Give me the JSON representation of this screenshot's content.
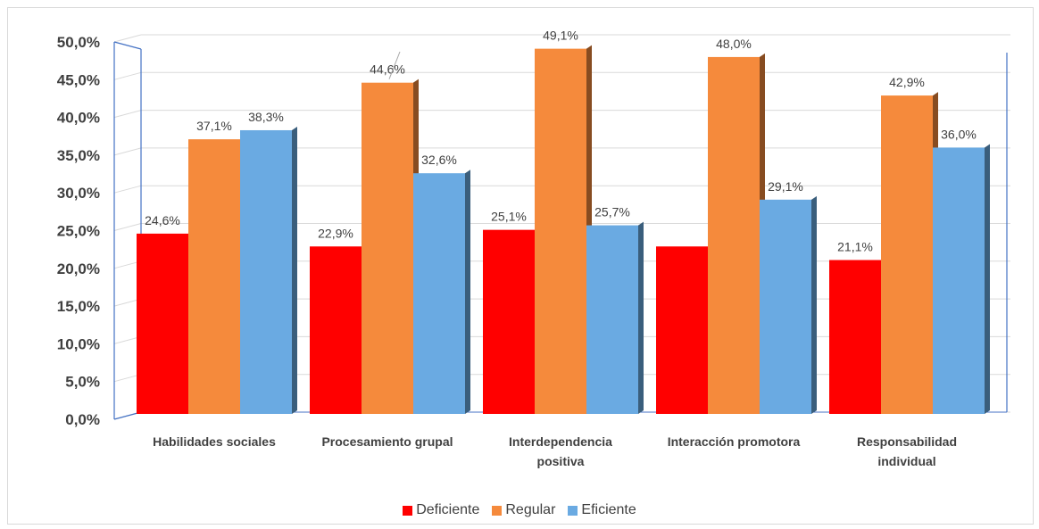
{
  "chart_data": {
    "type": "bar",
    "title": "",
    "xlabel": "",
    "ylabel": "",
    "ylim": [
      0,
      50
    ],
    "ytick_labels": [
      "0,0%",
      "5,0%",
      "10,0%",
      "15,0%",
      "20,0%",
      "25,0%",
      "30,0%",
      "35,0%",
      "40,0%",
      "45,0%",
      "50,0%"
    ],
    "categories": [
      [
        "Habilidades sociales"
      ],
      [
        "Procesamiento grupal"
      ],
      [
        "Interdependencia",
        "positiva"
      ],
      [
        "Interacción promotora"
      ],
      [
        "Responsabilidad",
        "individual"
      ]
    ],
    "series": [
      {
        "name": "Deficiente",
        "color": "#ff0000",
        "values": [
          24.6,
          22.9,
          25.1,
          22.9,
          21.1
        ],
        "labels": [
          "24,6%",
          "22,9%",
          "25,1%",
          "",
          "21,1%"
        ]
      },
      {
        "name": "Regular",
        "color": "#f58a3c",
        "values": [
          37.1,
          44.6,
          49.1,
          48.0,
          42.9
        ],
        "labels": [
          "37,1%",
          "44,6%",
          "49,1%",
          "48,0%",
          "42,9%"
        ]
      },
      {
        "name": "Eficiente",
        "color": "#6aaae2",
        "values": [
          38.3,
          32.6,
          25.7,
          29.1,
          36.0
        ],
        "labels": [
          "38,3%",
          "32,6%",
          "25,7%",
          "29,1%",
          "36,0%"
        ]
      }
    ],
    "grid": true,
    "legend_position": "bottom"
  }
}
